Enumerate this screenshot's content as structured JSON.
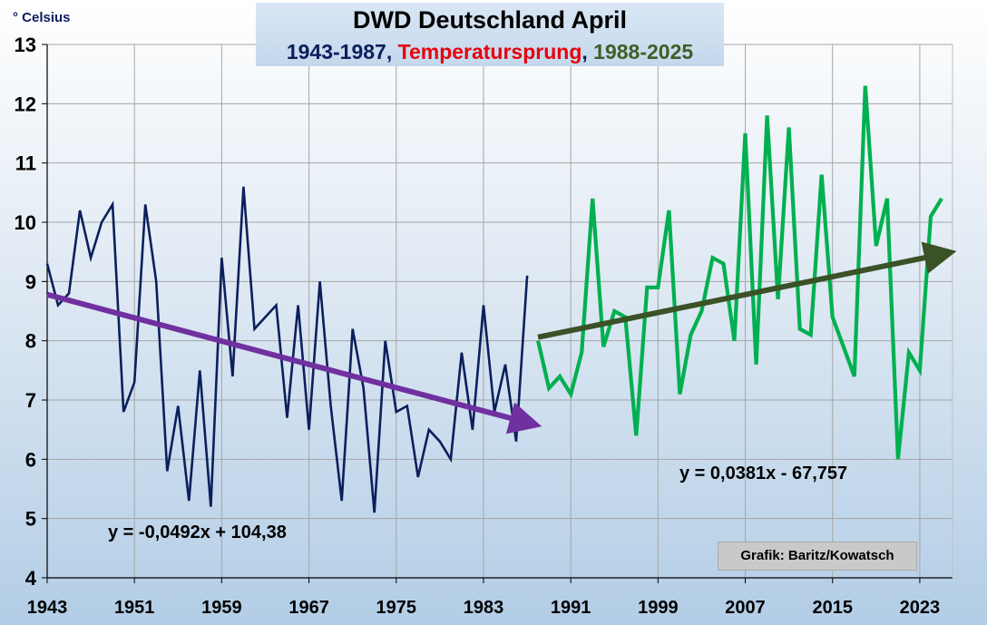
{
  "chart_data": {
    "type": "line",
    "title": "DWD Deutschland April",
    "subtitle_parts": [
      {
        "text": "1943-1987",
        "color": "#0b1f5c"
      },
      {
        "text": ", ",
        "color": "#0b1f5c"
      },
      {
        "text": "Temperatursprung",
        "color": "#e8000d"
      },
      {
        "text": ", ",
        "color": "#0b1f5c"
      },
      {
        "text": "1988-2025",
        "color": "#3f5d26"
      }
    ],
    "ylabel": "° Celsius",
    "ylim": [
      4,
      13
    ],
    "xlim": [
      1943,
      2026
    ],
    "yticks": [
      4,
      5,
      6,
      7,
      8,
      9,
      10,
      11,
      12,
      13
    ],
    "xticks": [
      1943,
      1951,
      1959,
      1967,
      1975,
      1983,
      1991,
      1999,
      2007,
      2015,
      2023
    ],
    "grid": true,
    "series": [
      {
        "color": "#0b1f5c",
        "x": [
          1943,
          1944,
          1945,
          1946,
          1947,
          1948,
          1949,
          1950,
          1951,
          1952,
          1953,
          1954,
          1955,
          1956,
          1957,
          1958,
          1959,
          1960,
          1961,
          1962,
          1963,
          1964,
          1965,
          1966,
          1967,
          1968,
          1969,
          1970,
          1971,
          1972,
          1973,
          1974,
          1975,
          1976,
          1977,
          1978,
          1979,
          1980,
          1981,
          1982,
          1983,
          1984,
          1985,
          1986,
          1987
        ],
        "values": [
          9.3,
          8.6,
          8.8,
          10.2,
          9.4,
          10.0,
          10.3,
          6.8,
          7.3,
          10.3,
          9.0,
          5.8,
          6.9,
          5.3,
          7.5,
          5.2,
          9.4,
          7.4,
          10.6,
          8.2,
          8.4,
          8.6,
          6.7,
          8.6,
          6.5,
          9.0,
          6.9,
          5.3,
          8.2,
          7.2,
          5.1,
          8.0,
          6.8,
          6.9,
          5.7,
          6.5,
          6.3,
          6.0,
          7.8,
          6.5,
          8.6,
          6.8,
          7.6,
          6.3,
          9.1
        ]
      },
      {
        "color": "#00b050",
        "x": [
          1988,
          1989,
          1990,
          1991,
          1992,
          1993,
          1994,
          1995,
          1996,
          1997,
          1998,
          1999,
          2000,
          2001,
          2002,
          2003,
          2004,
          2005,
          2006,
          2007,
          2008,
          2009,
          2010,
          2011,
          2012,
          2013,
          2014,
          2015,
          2016,
          2017,
          2018,
          2019,
          2020,
          2021,
          2022,
          2023,
          2024,
          2025
        ],
        "values": [
          8.0,
          7.2,
          7.4,
          7.1,
          7.8,
          10.4,
          7.9,
          8.5,
          8.4,
          6.4,
          8.9,
          8.9,
          10.2,
          7.1,
          8.1,
          8.5,
          9.4,
          9.3,
          8.0,
          11.5,
          7.6,
          11.8,
          8.7,
          11.6,
          8.2,
          8.1,
          10.8,
          8.4,
          7.9,
          7.4,
          12.3,
          9.6,
          10.4,
          6.0,
          7.8,
          7.5,
          10.1,
          10.4
        ]
      }
    ],
    "trendlines": [
      {
        "color": "#7030a0",
        "x": [
          1943,
          1987
        ],
        "values": [
          8.78,
          6.62
        ]
      },
      {
        "color": "#3a5226",
        "x": [
          1988,
          2025
        ],
        "values": [
          8.06,
          9.46
        ]
      }
    ],
    "annotations": {
      "eq1": {
        "text": "y = -0,0492x + 104,38",
        "color": "#0b1f5c"
      },
      "eq2": {
        "text": "y = 0,0381x - 67,757",
        "color": "#3f5d26"
      },
      "credit": "Grafik: Baritz/Kowatsch"
    }
  }
}
